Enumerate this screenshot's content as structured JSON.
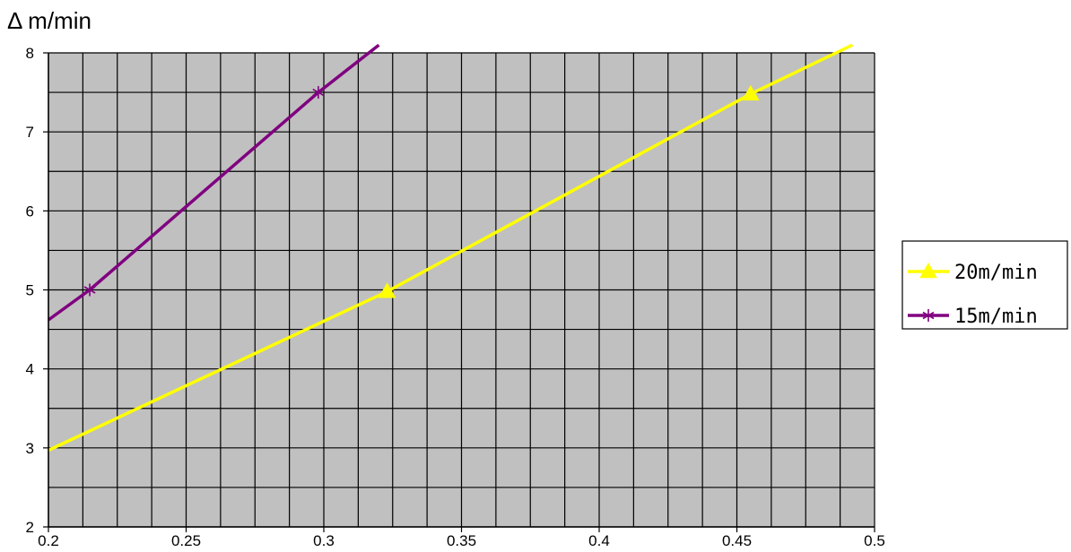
{
  "chart_data": {
    "type": "line",
    "title": "",
    "ylabel": "Δ m/min",
    "xlabel": "",
    "xlim": [
      0.2,
      0.5
    ],
    "ylim": [
      2,
      8
    ],
    "x_ticks": [
      "0.2",
      "0.25",
      "0.3",
      "0.35",
      "0.4",
      "0.45",
      "0.5"
    ],
    "x_tick_values": [
      0.2,
      0.25,
      0.3,
      0.35,
      0.4,
      0.45,
      0.5
    ],
    "y_ticks": [
      "2",
      "3",
      "4",
      "5",
      "6",
      "7",
      "8"
    ],
    "y_tick_values": [
      2,
      3,
      4,
      5,
      6,
      7,
      8
    ],
    "x_minor_step": 0.0125,
    "y_minor_step": 0.5,
    "grid": true,
    "plot_background": "#c0c0c0",
    "legend_position": "right",
    "series": [
      {
        "name": "20m/min",
        "color": "#ffff00",
        "marker": "triangle",
        "points": [
          [
            0.2,
            2.97
          ],
          [
            0.323,
            4.98
          ],
          [
            0.455,
            7.48
          ],
          [
            0.492,
            8.1
          ]
        ],
        "marker_points": [
          [
            0.323,
            4.98
          ],
          [
            0.455,
            7.48
          ]
        ]
      },
      {
        "name": "15m/min",
        "color": "#800080",
        "marker": "asterisk",
        "points": [
          [
            0.2,
            4.62
          ],
          [
            0.215,
            5.0
          ],
          [
            0.298,
            7.5
          ],
          [
            0.32,
            8.1
          ]
        ],
        "marker_points": [
          [
            0.215,
            5.0
          ],
          [
            0.298,
            7.5
          ]
        ]
      }
    ]
  }
}
